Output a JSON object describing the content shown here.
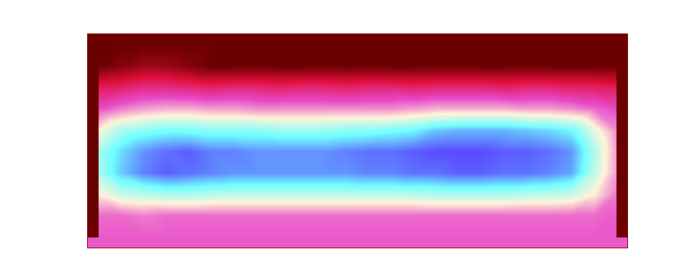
{
  "chart_data": {
    "type": "heatmap",
    "tick_labels": false,
    "cells": [
      [
        0,
        0,
        0,
        0,
        0,
        0,
        0,
        0,
        0,
        0,
        0,
        0,
        0,
        0,
        0,
        0,
        0,
        0,
        0,
        0,
        0,
        0,
        0,
        0
      ],
      [
        0,
        0.2,
        0.4,
        0.4,
        0.2,
        0,
        0,
        0,
        0,
        0,
        0,
        0,
        0,
        0,
        0,
        0,
        0,
        0,
        0,
        0,
        0,
        0,
        0,
        0
      ],
      [
        1.2,
        1.3,
        1.5,
        1.5,
        1.4,
        1.3,
        1.4,
        1.4,
        1.3,
        1.4,
        1.4,
        1.3,
        1.4,
        1.4,
        1.3,
        1.4,
        1.4,
        1.4,
        1.3,
        1.4,
        1.4,
        1.3,
        1.3,
        1.2
      ],
      [
        2,
        2.3,
        2.5,
        2.6,
        2.6,
        2.5,
        2.5,
        2.4,
        2.4,
        2.4,
        2.4,
        2.4,
        2.4,
        2.4,
        2.5,
        2.6,
        2.6,
        2.6,
        2.6,
        2.5,
        2.5,
        2.4,
        2.2,
        2
      ],
      [
        3,
        3.6,
        3.8,
        3.9,
        3.9,
        3.8,
        3.8,
        3.8,
        3.7,
        3.7,
        3.7,
        3.8,
        3.8,
        3.9,
        4,
        4.3,
        4.4,
        4.4,
        4.4,
        4.3,
        4.2,
        4,
        3.2,
        2.4
      ],
      [
        3.6,
        4.2,
        4.6,
        4.8,
        4.9,
        4.7,
        4.7,
        4.6,
        4.6,
        4.6,
        4.6,
        4.7,
        4.8,
        4.8,
        4.9,
        5,
        5,
        5,
        4.9,
        4.9,
        4.8,
        4.6,
        3.6,
        2.5
      ],
      [
        3.6,
        4.3,
        4.7,
        4.9,
        4.8,
        4.7,
        4.6,
        4.6,
        4.6,
        4.6,
        4.6,
        4.6,
        4.7,
        4.7,
        4.8,
        4.8,
        4.9,
        4.9,
        4.8,
        4.8,
        4.7,
        4.5,
        3.5,
        2.5
      ],
      [
        3,
        3.4,
        3.5,
        3.6,
        3.6,
        3.5,
        3.5,
        3.5,
        3.5,
        3.5,
        3.5,
        3.5,
        3.5,
        3.5,
        3.5,
        3.6,
        3.6,
        3.6,
        3.6,
        3.5,
        3.5,
        3.4,
        3,
        2.3
      ],
      [
        2.2,
        2.2,
        2.3,
        2.2,
        2.2,
        2.2,
        2.2,
        2.2,
        2.2,
        2.2,
        2.2,
        2.2,
        2.2,
        2.2,
        2.2,
        2.2,
        2.2,
        2.2,
        2.2,
        2.2,
        2.2,
        2.2,
        2.2,
        2.1
      ],
      [
        2.1,
        2.1,
        2.1,
        2.1,
        2.1,
        2.1,
        2.1,
        2.1,
        2.1,
        2.1,
        2.1,
        2.1,
        2.1,
        2.1,
        2.1,
        2.1,
        2.1,
        2.1,
        2.1,
        2.1,
        2.1,
        2.1,
        2.1,
        2.1
      ]
    ]
  }
}
